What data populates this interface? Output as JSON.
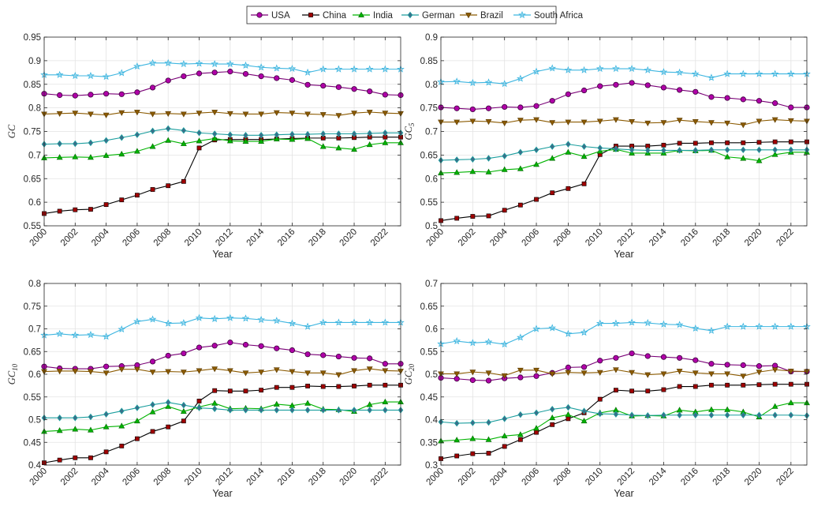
{
  "legend": {
    "entries": [
      "USA",
      "China",
      "India",
      "German",
      "Brazil",
      "South Africa"
    ],
    "colors": [
      "#7a0177",
      "#000000",
      "#00b300",
      "#1b9e9e",
      "#8b5a00",
      "#3fb6e0"
    ],
    "markers": [
      "circle",
      "square",
      "triangle-up",
      "diamond",
      "triangle-down",
      "star"
    ]
  },
  "chart_data": [
    {
      "type": "line",
      "ylabel": "GC",
      "ylabel_sub": "",
      "xlabel": "Year",
      "ylim": [
        0.55,
        0.95
      ],
      "yticks": [
        "0.55",
        "0.6",
        "0.65",
        "0.7",
        "0.75",
        "0.8",
        "0.85",
        "0.9",
        "0.95"
      ],
      "xlim": [
        2000,
        2023
      ],
      "xticks": [
        "2000",
        "2002",
        "2004",
        "2006",
        "2008",
        "2010",
        "2012",
        "2014",
        "2016",
        "2018",
        "2020",
        "2022"
      ],
      "x": [
        2000,
        2001,
        2002,
        2003,
        2004,
        2005,
        2006,
        2007,
        2008,
        2009,
        2010,
        2011,
        2012,
        2013,
        2014,
        2015,
        2016,
        2017,
        2018,
        2019,
        2020,
        2021,
        2022,
        2023
      ],
      "series": [
        {
          "name": "USA",
          "values": [
            0.83,
            0.827,
            0.826,
            0.828,
            0.83,
            0.829,
            0.833,
            0.843,
            0.858,
            0.867,
            0.873,
            0.875,
            0.877,
            0.872,
            0.867,
            0.863,
            0.859,
            0.849,
            0.847,
            0.844,
            0.84,
            0.835,
            0.828,
            0.827
          ]
        },
        {
          "name": "China",
          "values": [
            0.576,
            0.581,
            0.584,
            0.585,
            0.595,
            0.605,
            0.615,
            0.627,
            0.635,
            0.644,
            0.715,
            0.732,
            0.733,
            0.733,
            0.733,
            0.734,
            0.735,
            0.736,
            0.736,
            0.736,
            0.737,
            0.738,
            0.738,
            0.738
          ]
        },
        {
          "name": "India",
          "values": [
            0.694,
            0.695,
            0.696,
            0.695,
            0.699,
            0.702,
            0.708,
            0.718,
            0.731,
            0.724,
            0.73,
            0.735,
            0.73,
            0.729,
            0.729,
            0.734,
            0.733,
            0.735,
            0.718,
            0.715,
            0.712,
            0.722,
            0.726,
            0.726
          ]
        },
        {
          "name": "German",
          "values": [
            0.723,
            0.724,
            0.724,
            0.726,
            0.731,
            0.737,
            0.743,
            0.751,
            0.756,
            0.752,
            0.747,
            0.745,
            0.743,
            0.742,
            0.742,
            0.743,
            0.744,
            0.744,
            0.745,
            0.745,
            0.745,
            0.746,
            0.747,
            0.747
          ]
        },
        {
          "name": "Brazil",
          "values": [
            0.787,
            0.788,
            0.789,
            0.787,
            0.785,
            0.79,
            0.791,
            0.787,
            0.788,
            0.787,
            0.789,
            0.791,
            0.788,
            0.787,
            0.787,
            0.79,
            0.789,
            0.787,
            0.786,
            0.784,
            0.789,
            0.791,
            0.789,
            0.788
          ]
        },
        {
          "name": "South Africa",
          "values": [
            0.87,
            0.87,
            0.868,
            0.868,
            0.866,
            0.874,
            0.888,
            0.895,
            0.895,
            0.893,
            0.894,
            0.893,
            0.893,
            0.89,
            0.886,
            0.884,
            0.883,
            0.875,
            0.882,
            0.882,
            0.882,
            0.882,
            0.882,
            0.882
          ]
        }
      ]
    },
    {
      "type": "line",
      "ylabel": "GC",
      "ylabel_sub": "5",
      "xlabel": "Year",
      "ylim": [
        0.5,
        0.9
      ],
      "yticks": [
        "0.5",
        "0.55",
        "0.6",
        "0.65",
        "0.7",
        "0.75",
        "0.8",
        "0.85",
        "0.9"
      ],
      "xlim": [
        2000,
        2023
      ],
      "xticks": [
        "2000",
        "2002",
        "2004",
        "2006",
        "2008",
        "2010",
        "2012",
        "2014",
        "2016",
        "2018",
        "2020",
        "2022"
      ],
      "x": [
        2000,
        2001,
        2002,
        2003,
        2004,
        2005,
        2006,
        2007,
        2008,
        2009,
        2010,
        2011,
        2012,
        2013,
        2014,
        2015,
        2016,
        2017,
        2018,
        2019,
        2020,
        2021,
        2022,
        2023
      ],
      "series": [
        {
          "name": "USA",
          "values": [
            0.751,
            0.749,
            0.747,
            0.749,
            0.752,
            0.751,
            0.754,
            0.765,
            0.779,
            0.787,
            0.796,
            0.799,
            0.803,
            0.798,
            0.793,
            0.788,
            0.784,
            0.773,
            0.771,
            0.768,
            0.765,
            0.76,
            0.751,
            0.751
          ]
        },
        {
          "name": "China",
          "values": [
            0.511,
            0.516,
            0.52,
            0.521,
            0.533,
            0.544,
            0.556,
            0.57,
            0.579,
            0.589,
            0.651,
            0.669,
            0.669,
            0.669,
            0.671,
            0.675,
            0.675,
            0.676,
            0.676,
            0.676,
            0.677,
            0.678,
            0.678,
            0.678
          ]
        },
        {
          "name": "India",
          "values": [
            0.612,
            0.613,
            0.615,
            0.614,
            0.619,
            0.621,
            0.63,
            0.643,
            0.656,
            0.647,
            0.658,
            0.662,
            0.654,
            0.654,
            0.654,
            0.66,
            0.659,
            0.66,
            0.646,
            0.643,
            0.638,
            0.651,
            0.656,
            0.656
          ]
        },
        {
          "name": "German",
          "values": [
            0.639,
            0.64,
            0.641,
            0.643,
            0.648,
            0.656,
            0.661,
            0.668,
            0.673,
            0.668,
            0.665,
            0.663,
            0.661,
            0.66,
            0.66,
            0.66,
            0.66,
            0.661,
            0.661,
            0.661,
            0.661,
            0.661,
            0.661,
            0.661
          ]
        },
        {
          "name": "Brazil",
          "values": [
            0.72,
            0.72,
            0.722,
            0.721,
            0.718,
            0.724,
            0.725,
            0.719,
            0.72,
            0.72,
            0.722,
            0.725,
            0.721,
            0.718,
            0.719,
            0.724,
            0.721,
            0.719,
            0.718,
            0.714,
            0.722,
            0.725,
            0.723,
            0.722
          ]
        },
        {
          "name": "South Africa",
          "values": [
            0.805,
            0.806,
            0.803,
            0.804,
            0.801,
            0.812,
            0.827,
            0.834,
            0.83,
            0.83,
            0.833,
            0.833,
            0.833,
            0.83,
            0.826,
            0.825,
            0.822,
            0.814,
            0.822,
            0.822,
            0.822,
            0.822,
            0.822,
            0.822
          ]
        }
      ]
    },
    {
      "type": "line",
      "ylabel": "GC",
      "ylabel_sub": "10",
      "xlabel": "Year",
      "ylim": [
        0.4,
        0.8
      ],
      "yticks": [
        "0.4",
        "0.45",
        "0.5",
        "0.55",
        "0.6",
        "0.65",
        "0.7",
        "0.75",
        "0.8"
      ],
      "xlim": [
        2000,
        2023
      ],
      "xticks": [
        "2000",
        "2002",
        "2004",
        "2006",
        "2008",
        "2010",
        "2012",
        "2014",
        "2016",
        "2018",
        "2020",
        "2022"
      ],
      "x": [
        2000,
        2001,
        2002,
        2003,
        2004,
        2005,
        2006,
        2007,
        2008,
        2009,
        2010,
        2011,
        2012,
        2013,
        2014,
        2015,
        2016,
        2017,
        2018,
        2019,
        2020,
        2021,
        2022,
        2023
      ],
      "series": [
        {
          "name": "USA",
          "values": [
            0.617,
            0.613,
            0.612,
            0.612,
            0.617,
            0.618,
            0.62,
            0.628,
            0.641,
            0.646,
            0.659,
            0.663,
            0.67,
            0.665,
            0.662,
            0.657,
            0.653,
            0.644,
            0.642,
            0.639,
            0.636,
            0.635,
            0.623,
            0.623
          ]
        },
        {
          "name": "China",
          "values": [
            0.405,
            0.411,
            0.416,
            0.416,
            0.429,
            0.442,
            0.458,
            0.474,
            0.484,
            0.497,
            0.541,
            0.564,
            0.563,
            0.563,
            0.565,
            0.571,
            0.571,
            0.574,
            0.573,
            0.573,
            0.574,
            0.576,
            0.576,
            0.576
          ]
        },
        {
          "name": "India",
          "values": [
            0.474,
            0.476,
            0.479,
            0.477,
            0.484,
            0.486,
            0.497,
            0.517,
            0.529,
            0.518,
            0.528,
            0.536,
            0.524,
            0.525,
            0.524,
            0.534,
            0.531,
            0.536,
            0.523,
            0.522,
            0.518,
            0.533,
            0.539,
            0.539
          ]
        },
        {
          "name": "German",
          "values": [
            0.504,
            0.504,
            0.504,
            0.506,
            0.512,
            0.519,
            0.526,
            0.533,
            0.538,
            0.532,
            0.526,
            0.524,
            0.521,
            0.521,
            0.521,
            0.521,
            0.521,
            0.521,
            0.521,
            0.521,
            0.521,
            0.521,
            0.521,
            0.521
          ]
        },
        {
          "name": "Brazil",
          "values": [
            0.606,
            0.607,
            0.607,
            0.606,
            0.603,
            0.611,
            0.611,
            0.605,
            0.606,
            0.605,
            0.608,
            0.612,
            0.608,
            0.603,
            0.605,
            0.61,
            0.606,
            0.603,
            0.603,
            0.599,
            0.608,
            0.612,
            0.608,
            0.607
          ]
        },
        {
          "name": "South Africa",
          "values": [
            0.686,
            0.689,
            0.686,
            0.687,
            0.683,
            0.699,
            0.716,
            0.721,
            0.712,
            0.713,
            0.724,
            0.722,
            0.724,
            0.723,
            0.72,
            0.718,
            0.712,
            0.705,
            0.714,
            0.714,
            0.714,
            0.714,
            0.714,
            0.714
          ]
        }
      ]
    },
    {
      "type": "line",
      "ylabel": "GC",
      "ylabel_sub": "20",
      "xlabel": "Year",
      "ylim": [
        0.3,
        0.7
      ],
      "yticks": [
        "0.3",
        "0.35",
        "0.4",
        "0.45",
        "0.5",
        "0.55",
        "0.6",
        "0.65",
        "0.7"
      ],
      "xlim": [
        2000,
        2023
      ],
      "xticks": [
        "2000",
        "2002",
        "2004",
        "2006",
        "2008",
        "2010",
        "2012",
        "2014",
        "2016",
        "2018",
        "2020",
        "2022"
      ],
      "x": [
        2000,
        2001,
        2002,
        2003,
        2004,
        2005,
        2006,
        2007,
        2008,
        2009,
        2010,
        2011,
        2012,
        2013,
        2014,
        2015,
        2016,
        2017,
        2018,
        2019,
        2020,
        2021,
        2022,
        2023
      ],
      "series": [
        {
          "name": "USA",
          "values": [
            0.492,
            0.49,
            0.487,
            0.486,
            0.491,
            0.493,
            0.496,
            0.503,
            0.515,
            0.516,
            0.53,
            0.536,
            0.546,
            0.54,
            0.538,
            0.536,
            0.531,
            0.523,
            0.521,
            0.52,
            0.518,
            0.519,
            0.506,
            0.506
          ]
        },
        {
          "name": "China",
          "values": [
            0.314,
            0.32,
            0.325,
            0.326,
            0.341,
            0.356,
            0.372,
            0.389,
            0.402,
            0.415,
            0.445,
            0.465,
            0.463,
            0.463,
            0.466,
            0.473,
            0.473,
            0.476,
            0.476,
            0.476,
            0.477,
            0.478,
            0.478,
            0.478
          ]
        },
        {
          "name": "India",
          "values": [
            0.353,
            0.355,
            0.358,
            0.356,
            0.364,
            0.367,
            0.381,
            0.404,
            0.411,
            0.397,
            0.415,
            0.421,
            0.408,
            0.409,
            0.408,
            0.421,
            0.417,
            0.422,
            0.422,
            0.417,
            0.406,
            0.429,
            0.437,
            0.437
          ]
        },
        {
          "name": "German",
          "values": [
            0.395,
            0.392,
            0.393,
            0.394,
            0.402,
            0.411,
            0.415,
            0.423,
            0.427,
            0.419,
            0.413,
            0.412,
            0.41,
            0.409,
            0.41,
            0.41,
            0.41,
            0.41,
            0.41,
            0.41,
            0.41,
            0.41,
            0.41,
            0.409
          ]
        },
        {
          "name": "Brazil",
          "values": [
            0.501,
            0.501,
            0.505,
            0.503,
            0.497,
            0.509,
            0.509,
            0.501,
            0.504,
            0.503,
            0.504,
            0.51,
            0.504,
            0.499,
            0.501,
            0.507,
            0.503,
            0.501,
            0.501,
            0.496,
            0.505,
            0.51,
            0.507,
            0.506
          ]
        },
        {
          "name": "South Africa",
          "values": [
            0.567,
            0.573,
            0.569,
            0.571,
            0.566,
            0.581,
            0.6,
            0.602,
            0.589,
            0.592,
            0.612,
            0.612,
            0.614,
            0.613,
            0.61,
            0.609,
            0.601,
            0.596,
            0.605,
            0.605,
            0.605,
            0.605,
            0.605,
            0.605
          ]
        }
      ]
    }
  ]
}
